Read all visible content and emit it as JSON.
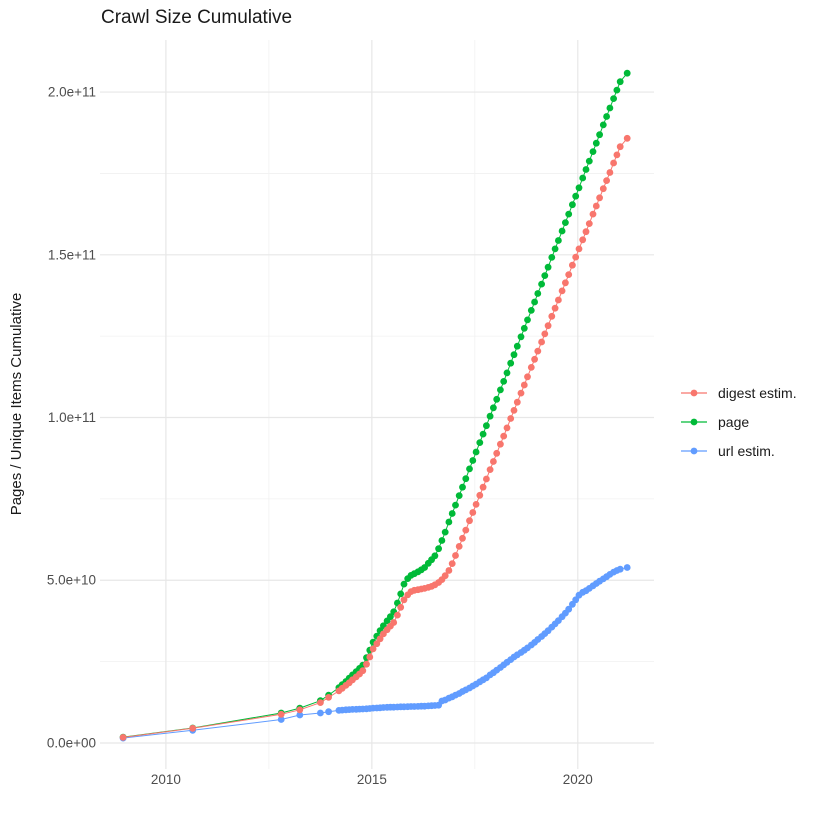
{
  "colors": {
    "background": "#FFFFFF",
    "grid_major": "#E7E7E7",
    "grid_minor": "#F1F1F1",
    "axis_text": "#4D4D4D",
    "title_text": "#1A1A1A",
    "series_digest": "#F8766D",
    "series_page": "#00BA38",
    "series_url": "#619CFF"
  },
  "chart_data": {
    "type": "scatter",
    "title": "Crawl Size Cumulative",
    "xlabel": "",
    "ylabel": "Pages / Unique Items Cumulative",
    "value_units": "billions (1e9) of pages / unique items",
    "grid": true,
    "legend_position": "right",
    "xlim": [
      2008.4,
      2021.85
    ],
    "ylim_billions": [
      -8,
      216
    ],
    "x_major_ticks": [
      {
        "value": 2010,
        "label": "2010"
      },
      {
        "value": 2015,
        "label": "2015"
      },
      {
        "value": 2020,
        "label": "2020"
      }
    ],
    "x_minor_ticks": [
      2012.5,
      2017.5
    ],
    "y_major_ticks": [
      {
        "value": 0,
        "label": "0.0e+00"
      },
      {
        "value": 50,
        "label": "5.0e+10"
      },
      {
        "value": 100,
        "label": "1.0e+11"
      },
      {
        "value": 150,
        "label": "1.5e+11"
      },
      {
        "value": 200,
        "label": "2.0e+11"
      }
    ],
    "y_minor_ticks": [
      25,
      75,
      125,
      175
    ],
    "series": [
      {
        "name": "digest estim.",
        "color": "#F8766D",
        "points": [
          [
            2008.96,
            1.7
          ],
          [
            2010.65,
            4.5
          ],
          [
            2012.8,
            8.8
          ],
          [
            2013.25,
            10.2
          ],
          [
            2013.75,
            12.4
          ],
          [
            2013.95,
            14.0
          ],
          [
            2014.2,
            16.0
          ],
          [
            2014.28,
            16.8
          ],
          [
            2014.37,
            17.7
          ],
          [
            2014.45,
            18.5
          ],
          [
            2014.53,
            19.4
          ],
          [
            2014.62,
            20.3
          ],
          [
            2014.7,
            21.2
          ],
          [
            2014.78,
            22.2
          ],
          [
            2014.87,
            24.2
          ],
          [
            2014.95,
            26.4
          ],
          [
            2015.03,
            28.9
          ],
          [
            2015.12,
            30.5
          ],
          [
            2015.2,
            32.0
          ],
          [
            2015.28,
            33.5
          ],
          [
            2015.37,
            34.8
          ],
          [
            2015.45,
            35.9
          ],
          [
            2015.53,
            37.0
          ],
          [
            2015.62,
            39.3
          ],
          [
            2015.7,
            41.7
          ],
          [
            2015.78,
            44.0
          ],
          [
            2015.87,
            45.5
          ],
          [
            2015.95,
            46.5
          ],
          [
            2016.03,
            46.9
          ],
          [
            2016.12,
            47.1
          ],
          [
            2016.2,
            47.3
          ],
          [
            2016.28,
            47.5
          ],
          [
            2016.37,
            47.8
          ],
          [
            2016.45,
            48.1
          ],
          [
            2016.53,
            48.6
          ],
          [
            2016.62,
            49.3
          ],
          [
            2016.7,
            50.2
          ],
          [
            2016.78,
            51.4
          ],
          [
            2016.87,
            53.0
          ],
          [
            2016.95,
            55.1
          ],
          [
            2017.03,
            57.6
          ],
          [
            2017.12,
            60.4
          ],
          [
            2017.2,
            62.9
          ],
          [
            2017.28,
            65.4
          ],
          [
            2017.37,
            68.3
          ],
          [
            2017.45,
            70.8
          ],
          [
            2017.53,
            73.3
          ],
          [
            2017.62,
            76.1
          ],
          [
            2017.7,
            78.6
          ],
          [
            2017.78,
            81.1
          ],
          [
            2017.87,
            84.0
          ],
          [
            2017.95,
            86.5
          ],
          [
            2018.03,
            89.0
          ],
          [
            2018.12,
            91.8
          ],
          [
            2018.2,
            94.3
          ],
          [
            2018.28,
            96.8
          ],
          [
            2018.37,
            99.7
          ],
          [
            2018.45,
            102.2
          ],
          [
            2018.53,
            104.7
          ],
          [
            2018.62,
            107.5
          ],
          [
            2018.7,
            110.0
          ],
          [
            2018.78,
            112.5
          ],
          [
            2018.87,
            115.4
          ],
          [
            2018.95,
            117.9
          ],
          [
            2019.03,
            120.4
          ],
          [
            2019.12,
            123.2
          ],
          [
            2019.2,
            125.7
          ],
          [
            2019.28,
            128.2
          ],
          [
            2019.37,
            131.1
          ],
          [
            2019.45,
            133.6
          ],
          [
            2019.53,
            136.1
          ],
          [
            2019.62,
            138.9
          ],
          [
            2019.7,
            141.4
          ],
          [
            2019.78,
            143.9
          ],
          [
            2019.87,
            146.8
          ],
          [
            2019.95,
            149.3
          ],
          [
            2020.03,
            151.8
          ],
          [
            2020.12,
            154.6
          ],
          [
            2020.2,
            157.1
          ],
          [
            2020.28,
            159.6
          ],
          [
            2020.37,
            162.5
          ],
          [
            2020.45,
            165.0
          ],
          [
            2020.53,
            167.5
          ],
          [
            2020.62,
            170.3
          ],
          [
            2020.7,
            172.8
          ],
          [
            2020.78,
            175.3
          ],
          [
            2020.87,
            178.2
          ],
          [
            2020.95,
            180.7
          ],
          [
            2021.03,
            183.2
          ],
          [
            2021.2,
            185.8
          ]
        ]
      },
      {
        "name": "page",
        "color": "#00BA38",
        "points": [
          [
            2008.96,
            1.8
          ],
          [
            2010.65,
            4.6
          ],
          [
            2012.8,
            9.2
          ],
          [
            2013.25,
            10.7
          ],
          [
            2013.75,
            13.0
          ],
          [
            2013.95,
            14.7
          ],
          [
            2014.2,
            17.0
          ],
          [
            2014.28,
            17.9
          ],
          [
            2014.37,
            18.9
          ],
          [
            2014.45,
            19.9
          ],
          [
            2014.53,
            20.9
          ],
          [
            2014.62,
            21.9
          ],
          [
            2014.7,
            22.9
          ],
          [
            2014.78,
            23.9
          ],
          [
            2014.87,
            26.2
          ],
          [
            2014.95,
            28.5
          ],
          [
            2015.03,
            31.0
          ],
          [
            2015.12,
            32.8
          ],
          [
            2015.2,
            34.5
          ],
          [
            2015.28,
            36.0
          ],
          [
            2015.37,
            37.5
          ],
          [
            2015.45,
            38.8
          ],
          [
            2015.53,
            40.3
          ],
          [
            2015.62,
            43.0
          ],
          [
            2015.7,
            45.8
          ],
          [
            2015.78,
            48.8
          ],
          [
            2015.87,
            50.5
          ],
          [
            2015.95,
            51.5
          ],
          [
            2016.03,
            52.0
          ],
          [
            2016.12,
            52.6
          ],
          [
            2016.2,
            53.2
          ],
          [
            2016.28,
            53.9
          ],
          [
            2016.37,
            55.2
          ],
          [
            2016.45,
            56.3
          ],
          [
            2016.53,
            57.5
          ],
          [
            2016.62,
            59.7
          ],
          [
            2016.7,
            62.2
          ],
          [
            2016.78,
            64.8
          ],
          [
            2016.87,
            67.9
          ],
          [
            2016.95,
            70.5
          ],
          [
            2017.03,
            73.1
          ],
          [
            2017.12,
            76.0
          ],
          [
            2017.2,
            78.6
          ],
          [
            2017.28,
            81.2
          ],
          [
            2017.37,
            84.2
          ],
          [
            2017.45,
            86.8
          ],
          [
            2017.53,
            89.4
          ],
          [
            2017.62,
            92.3
          ],
          [
            2017.7,
            94.9
          ],
          [
            2017.78,
            97.5
          ],
          [
            2017.87,
            100.4
          ],
          [
            2017.95,
            103.0
          ],
          [
            2018.03,
            105.6
          ],
          [
            2018.12,
            108.5
          ],
          [
            2018.2,
            111.1
          ],
          [
            2018.28,
            113.7
          ],
          [
            2018.37,
            116.7
          ],
          [
            2018.45,
            119.3
          ],
          [
            2018.53,
            121.9
          ],
          [
            2018.62,
            124.8
          ],
          [
            2018.7,
            127.4
          ],
          [
            2018.78,
            130.0
          ],
          [
            2018.87,
            132.9
          ],
          [
            2018.95,
            135.5
          ],
          [
            2019.03,
            138.1
          ],
          [
            2019.12,
            141.0
          ],
          [
            2019.2,
            143.6
          ],
          [
            2019.28,
            146.2
          ],
          [
            2019.37,
            149.2
          ],
          [
            2019.45,
            151.8
          ],
          [
            2019.53,
            154.4
          ],
          [
            2019.62,
            157.3
          ],
          [
            2019.7,
            159.9
          ],
          [
            2019.78,
            162.5
          ],
          [
            2019.87,
            165.4
          ],
          [
            2019.95,
            168.0
          ],
          [
            2020.03,
            170.6
          ],
          [
            2020.12,
            173.6
          ],
          [
            2020.2,
            176.2
          ],
          [
            2020.28,
            178.8
          ],
          [
            2020.37,
            181.7
          ],
          [
            2020.45,
            184.3
          ],
          [
            2020.53,
            186.9
          ],
          [
            2020.62,
            189.9
          ],
          [
            2020.7,
            192.5
          ],
          [
            2020.78,
            195.1
          ],
          [
            2020.87,
            198.0
          ],
          [
            2020.95,
            200.6
          ],
          [
            2021.03,
            203.2
          ],
          [
            2021.2,
            205.8
          ]
        ]
      },
      {
        "name": "url estim.",
        "color": "#619CFF",
        "points": [
          [
            2008.96,
            1.5
          ],
          [
            2010.65,
            3.9
          ],
          [
            2012.8,
            7.2
          ],
          [
            2013.25,
            8.6
          ],
          [
            2013.75,
            9.2
          ],
          [
            2013.95,
            9.6
          ],
          [
            2014.2,
            10.0
          ],
          [
            2014.28,
            10.1
          ],
          [
            2014.37,
            10.2
          ],
          [
            2014.45,
            10.25
          ],
          [
            2014.53,
            10.3
          ],
          [
            2014.62,
            10.35
          ],
          [
            2014.7,
            10.4
          ],
          [
            2014.78,
            10.45
          ],
          [
            2014.87,
            10.5
          ],
          [
            2014.95,
            10.6
          ],
          [
            2015.03,
            10.7
          ],
          [
            2015.12,
            10.75
          ],
          [
            2015.2,
            10.8
          ],
          [
            2015.28,
            10.9
          ],
          [
            2015.37,
            10.95
          ],
          [
            2015.45,
            11.0
          ],
          [
            2015.53,
            11.0
          ],
          [
            2015.62,
            11.05
          ],
          [
            2015.7,
            11.1
          ],
          [
            2015.78,
            11.1
          ],
          [
            2015.87,
            11.15
          ],
          [
            2015.95,
            11.2
          ],
          [
            2016.03,
            11.2
          ],
          [
            2016.12,
            11.25
          ],
          [
            2016.2,
            11.3
          ],
          [
            2016.28,
            11.3
          ],
          [
            2016.37,
            11.4
          ],
          [
            2016.45,
            11.45
          ],
          [
            2016.53,
            11.5
          ],
          [
            2016.62,
            11.6
          ],
          [
            2016.7,
            12.9
          ],
          [
            2016.78,
            13.2
          ],
          [
            2016.87,
            13.8
          ],
          [
            2016.95,
            14.2
          ],
          [
            2017.03,
            14.7
          ],
          [
            2017.12,
            15.2
          ],
          [
            2017.2,
            15.8
          ],
          [
            2017.28,
            16.3
          ],
          [
            2017.37,
            16.9
          ],
          [
            2017.45,
            17.5
          ],
          [
            2017.53,
            18.1
          ],
          [
            2017.62,
            18.8
          ],
          [
            2017.7,
            19.4
          ],
          [
            2017.78,
            20.0
          ],
          [
            2017.87,
            20.9
          ],
          [
            2017.95,
            21.6
          ],
          [
            2018.03,
            22.4
          ],
          [
            2018.12,
            23.2
          ],
          [
            2018.2,
            24.0
          ],
          [
            2018.28,
            24.8
          ],
          [
            2018.37,
            25.6
          ],
          [
            2018.45,
            26.4
          ],
          [
            2018.53,
            27.1
          ],
          [
            2018.62,
            27.8
          ],
          [
            2018.7,
            28.5
          ],
          [
            2018.78,
            29.2
          ],
          [
            2018.87,
            30.1
          ],
          [
            2018.95,
            30.9
          ],
          [
            2019.03,
            31.8
          ],
          [
            2019.12,
            32.7
          ],
          [
            2019.2,
            33.6
          ],
          [
            2019.28,
            34.5
          ],
          [
            2019.37,
            35.6
          ],
          [
            2019.45,
            36.6
          ],
          [
            2019.53,
            37.6
          ],
          [
            2019.62,
            38.8
          ],
          [
            2019.7,
            39.9
          ],
          [
            2019.78,
            41.1
          ],
          [
            2019.87,
            42.6
          ],
          [
            2019.95,
            44.0
          ],
          [
            2020.03,
            45.4
          ],
          [
            2020.12,
            46.3
          ],
          [
            2020.2,
            46.8
          ],
          [
            2020.28,
            47.5
          ],
          [
            2020.37,
            48.3
          ],
          [
            2020.45,
            49.0
          ],
          [
            2020.53,
            49.7
          ],
          [
            2020.62,
            50.4
          ],
          [
            2020.7,
            51.1
          ],
          [
            2020.78,
            51.8
          ],
          [
            2020.87,
            52.5
          ],
          [
            2020.95,
            53.0
          ],
          [
            2021.03,
            53.4
          ],
          [
            2021.2,
            53.9
          ]
        ]
      }
    ]
  }
}
